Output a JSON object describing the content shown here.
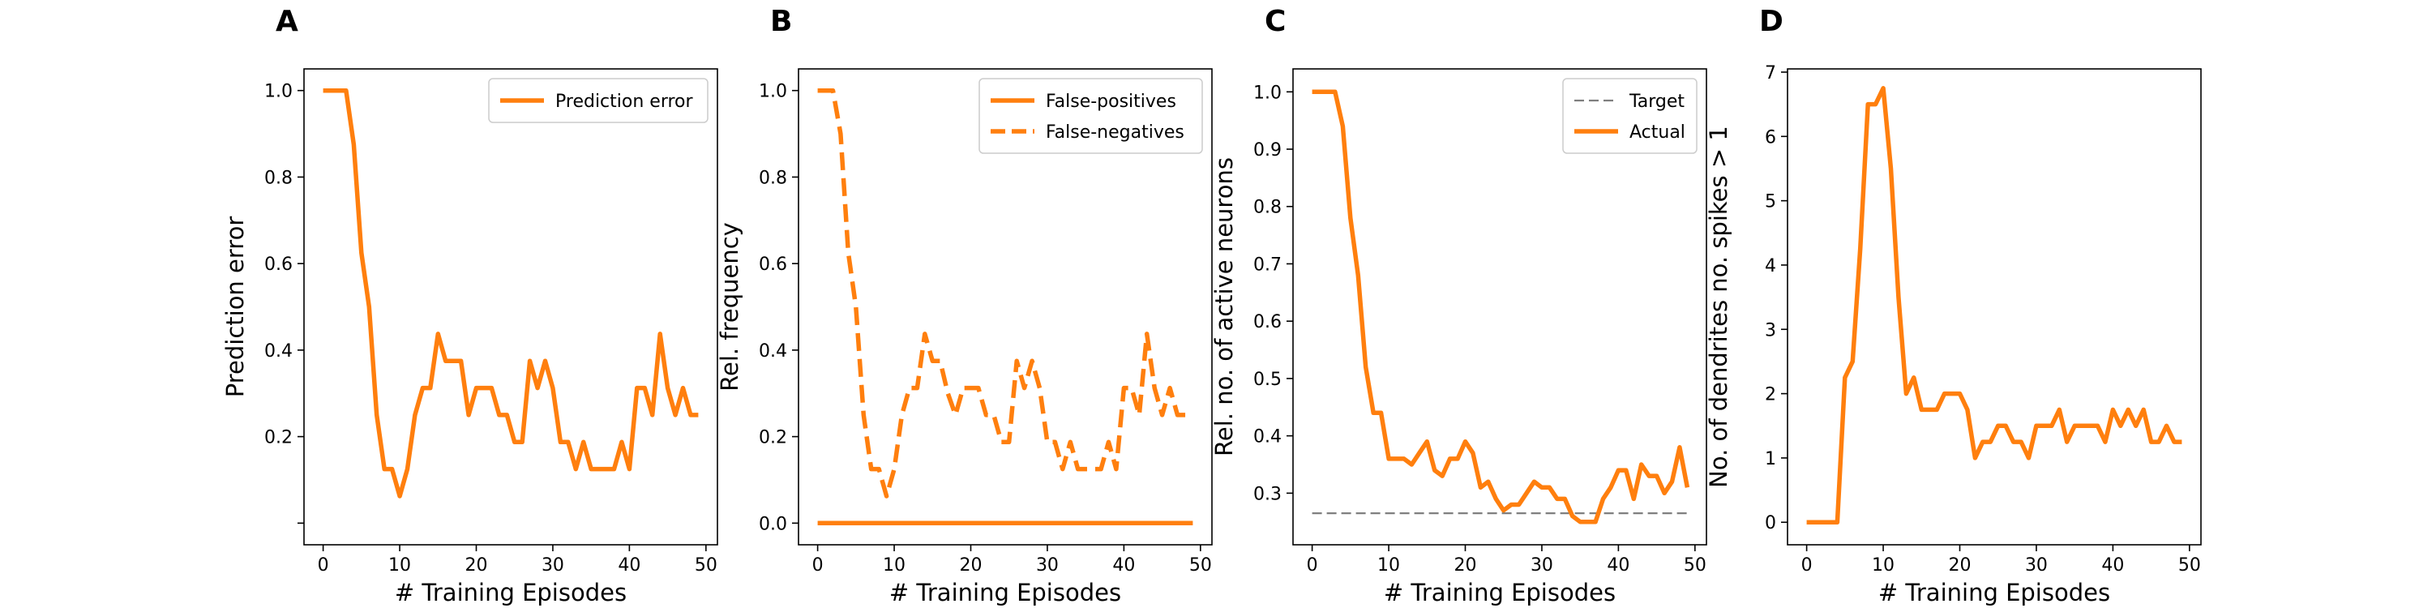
{
  "colors": {
    "series": "#ff7f0e",
    "target": "#7f7f7f",
    "axis": "#000000"
  },
  "chart_data": [
    {
      "panel": "A",
      "type": "line",
      "xlabel": "# Training Episodes",
      "ylabel": "Prediction error",
      "xlim": [
        -2.5,
        51.5
      ],
      "ylim": [
        -0.05,
        1.05
      ],
      "xticks": [
        0,
        10,
        20,
        30,
        40,
        50
      ],
      "yticks": [
        0.0,
        0.2,
        0.4,
        0.6,
        0.8,
        1.0
      ],
      "ytick_labels": [
        "",
        "0.2",
        "0.4",
        "0.6",
        "0.8",
        "1.0"
      ],
      "legend": "top-right",
      "series": [
        {
          "name": "Prediction error",
          "style": "solid",
          "x": [
            0,
            1,
            2,
            3,
            4,
            5,
            6,
            7,
            8,
            9,
            10,
            11,
            12,
            13,
            14,
            15,
            16,
            17,
            18,
            19,
            20,
            21,
            22,
            23,
            24,
            25,
            26,
            27,
            28,
            29,
            30,
            31,
            32,
            33,
            34,
            35,
            36,
            37,
            38,
            39,
            40,
            41,
            42,
            43,
            44,
            45,
            46,
            47,
            48,
            49
          ],
          "values": [
            1.0,
            1.0,
            1.0,
            1.0,
            0.875,
            0.625,
            0.5,
            0.25,
            0.125,
            0.125,
            0.0625,
            0.125,
            0.25,
            0.3125,
            0.3125,
            0.4375,
            0.375,
            0.375,
            0.375,
            0.25,
            0.3125,
            0.3125,
            0.3125,
            0.25,
            0.25,
            0.1875,
            0.1875,
            0.375,
            0.3125,
            0.375,
            0.3125,
            0.1875,
            0.1875,
            0.125,
            0.1875,
            0.125,
            0.125,
            0.125,
            0.125,
            0.1875,
            0.125,
            0.3125,
            0.3125,
            0.25,
            0.4375,
            0.3125,
            0.25,
            0.3125,
            0.25,
            0.25
          ]
        }
      ]
    },
    {
      "panel": "B",
      "type": "line",
      "xlabel": "# Training Episodes",
      "ylabel": "Rel. frequency",
      "xlim": [
        -2.5,
        51.5
      ],
      "ylim": [
        -0.05,
        1.05
      ],
      "xticks": [
        0,
        10,
        20,
        30,
        40,
        50
      ],
      "yticks": [
        0.0,
        0.2,
        0.4,
        0.6,
        0.8,
        1.0
      ],
      "ytick_labels": [
        "0.0",
        "0.2",
        "0.4",
        "0.6",
        "0.8",
        "1.0"
      ],
      "legend": "top-right",
      "series": [
        {
          "name": "False-positives",
          "style": "solid",
          "x": [
            0,
            1,
            2,
            3,
            4,
            5,
            6,
            7,
            8,
            9,
            10,
            11,
            12,
            13,
            14,
            15,
            16,
            17,
            18,
            19,
            20,
            21,
            22,
            23,
            24,
            25,
            26,
            27,
            28,
            29,
            30,
            31,
            32,
            33,
            34,
            35,
            36,
            37,
            38,
            39,
            40,
            41,
            42,
            43,
            44,
            45,
            46,
            47,
            48,
            49
          ],
          "values": [
            0,
            0,
            0,
            0,
            0,
            0,
            0,
            0,
            0,
            0,
            0,
            0,
            0,
            0,
            0,
            0,
            0,
            0,
            0,
            0,
            0,
            0,
            0,
            0,
            0,
            0,
            0,
            0,
            0,
            0,
            0,
            0,
            0,
            0,
            0,
            0,
            0,
            0,
            0,
            0,
            0,
            0,
            0,
            0,
            0,
            0,
            0,
            0,
            0,
            0
          ]
        },
        {
          "name": "False-negatives",
          "style": "dashed",
          "x": [
            0,
            1,
            2,
            3,
            4,
            5,
            6,
            7,
            8,
            9,
            10,
            11,
            12,
            13,
            14,
            15,
            16,
            17,
            18,
            19,
            20,
            21,
            22,
            23,
            24,
            25,
            26,
            27,
            28,
            29,
            30,
            31,
            32,
            33,
            34,
            35,
            36,
            37,
            38,
            39,
            40,
            41,
            42,
            43,
            44,
            45,
            46,
            47,
            48,
            49
          ],
          "values": [
            1.0,
            1.0,
            1.0,
            0.9,
            0.625,
            0.5,
            0.25,
            0.125,
            0.125,
            0.0625,
            0.125,
            0.25,
            0.3125,
            0.3125,
            0.4375,
            0.375,
            0.375,
            0.3,
            0.25,
            0.3125,
            0.3125,
            0.3125,
            0.25,
            0.25,
            0.1875,
            0.1875,
            0.375,
            0.3125,
            0.375,
            0.3125,
            0.1875,
            0.1875,
            0.125,
            0.1875,
            0.125,
            0.125,
            0.125,
            0.125,
            0.1875,
            0.125,
            0.3125,
            0.3125,
            0.25,
            0.4375,
            0.3125,
            0.25,
            0.3125,
            0.25,
            0.25,
            0.25
          ]
        }
      ]
    },
    {
      "panel": "C",
      "type": "line",
      "xlabel": "# Training Episodes",
      "ylabel": "Rel. no. of active neurons",
      "xlim": [
        -2.5,
        51.5
      ],
      "ylim": [
        0.21,
        1.04
      ],
      "xticks": [
        0,
        10,
        20,
        30,
        40,
        50
      ],
      "yticks": [
        0.3,
        0.4,
        0.5,
        0.6,
        0.7,
        0.8,
        0.9,
        1.0
      ],
      "ytick_labels": [
        "0.3",
        "0.4",
        "0.5",
        "0.6",
        "0.7",
        "0.8",
        "0.9",
        "1.0"
      ],
      "legend": "top-right",
      "series": [
        {
          "name": "Target",
          "style": "dashed-thin",
          "x": [
            0,
            49
          ],
          "values": [
            0.265,
            0.265
          ]
        },
        {
          "name": "Actual",
          "style": "solid",
          "x": [
            0,
            1,
            2,
            3,
            4,
            5,
            6,
            7,
            8,
            9,
            10,
            11,
            12,
            13,
            14,
            15,
            16,
            17,
            18,
            19,
            20,
            21,
            22,
            23,
            24,
            25,
            26,
            27,
            28,
            29,
            30,
            31,
            32,
            33,
            34,
            35,
            36,
            37,
            38,
            39,
            40,
            41,
            42,
            43,
            44,
            45,
            46,
            47,
            48,
            49
          ],
          "values": [
            1.0,
            1.0,
            1.0,
            1.0,
            0.94,
            0.78,
            0.68,
            0.52,
            0.44,
            0.44,
            0.36,
            0.36,
            0.36,
            0.35,
            0.37,
            0.39,
            0.34,
            0.33,
            0.36,
            0.36,
            0.39,
            0.37,
            0.31,
            0.32,
            0.29,
            0.27,
            0.28,
            0.28,
            0.3,
            0.32,
            0.31,
            0.31,
            0.29,
            0.29,
            0.26,
            0.25,
            0.25,
            0.25,
            0.29,
            0.31,
            0.34,
            0.34,
            0.29,
            0.35,
            0.33,
            0.33,
            0.3,
            0.32,
            0.38,
            0.31
          ]
        }
      ]
    },
    {
      "panel": "D",
      "type": "line",
      "xlabel": "# Training Episodes",
      "ylabel": "No. of dendrites no. spikes > 1",
      "xlim": [
        -2.5,
        51.5
      ],
      "ylim": [
        -0.35,
        7.05
      ],
      "xticks": [
        0,
        10,
        20,
        30,
        40,
        50
      ],
      "yticks": [
        0,
        1,
        2,
        3,
        4,
        5,
        6,
        7
      ],
      "ytick_labels": [
        "0",
        "1",
        "2",
        "3",
        "4",
        "5",
        "6",
        "7"
      ],
      "legend": "",
      "series": [
        {
          "name": "",
          "style": "solid",
          "x": [
            0,
            1,
            2,
            3,
            4,
            5,
            6,
            7,
            8,
            9,
            10,
            11,
            12,
            13,
            14,
            15,
            16,
            17,
            18,
            19,
            20,
            21,
            22,
            23,
            24,
            25,
            26,
            27,
            28,
            29,
            30,
            31,
            32,
            33,
            34,
            35,
            36,
            37,
            38,
            39,
            40,
            41,
            42,
            43,
            44,
            45,
            46,
            47,
            48,
            49
          ],
          "values": [
            0,
            0,
            0,
            0,
            0,
            2.25,
            2.5,
            4.25,
            6.5,
            6.5,
            6.75,
            5.5,
            3.5,
            2.0,
            2.25,
            1.75,
            1.75,
            1.75,
            2.0,
            2.0,
            2.0,
            1.75,
            1.0,
            1.25,
            1.25,
            1.5,
            1.5,
            1.25,
            1.25,
            1.0,
            1.5,
            1.5,
            1.5,
            1.75,
            1.25,
            1.5,
            1.5,
            1.5,
            1.5,
            1.25,
            1.75,
            1.5,
            1.75,
            1.5,
            1.75,
            1.25,
            1.25,
            1.5,
            1.25,
            1.25
          ]
        }
      ]
    }
  ]
}
